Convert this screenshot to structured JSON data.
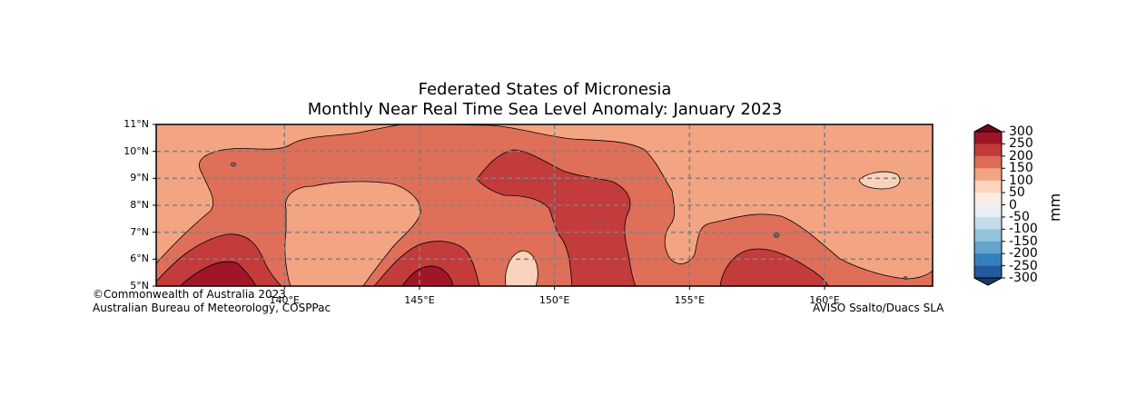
{
  "title": {
    "line1": "Federated States of Micronesia",
    "line2": "Monthly Near Real Time Sea Level Anomaly: January 2023"
  },
  "axes": {
    "lat_labels": [
      "11°N",
      "10°N",
      "9°N",
      "8°N",
      "7°N",
      "6°N",
      "5°N"
    ],
    "lon_labels": [
      "140°E",
      "145°E",
      "150°E",
      "155°E",
      "160°E"
    ]
  },
  "credits": {
    "left_line1": "©Commonwealth of Australia 2023",
    "left_line2": "Australian Bureau of Meteorology, COSPPac",
    "right": "AVISO Ssalto/Duacs SLA"
  },
  "colorbar": {
    "unit": "mm",
    "labels": [
      "300",
      "250",
      "200",
      "150",
      "100",
      "50",
      "0",
      "-50",
      "-100",
      "-150",
      "-200",
      "-250",
      "-300"
    ],
    "colors": [
      "#9e1527",
      "#c23a3a",
      "#dd6d58",
      "#f2a483",
      "#fcd4bd",
      "#fbece4",
      "#e8f0f5",
      "#c4dded",
      "#93c4de",
      "#62a4cc",
      "#3680bc",
      "#23599e"
    ],
    "over_color": "#6a0a1c",
    "under_color": "#133a6d"
  },
  "chart_data": {
    "type": "heatmap",
    "title": "Monthly Near Real Time Sea Level Anomaly: January 2023",
    "region": "Federated States of Micronesia",
    "x_range": [
      135.25,
      164
    ],
    "y_range": [
      5,
      11
    ],
    "x_ticks": [
      140,
      145,
      150,
      155,
      160
    ],
    "y_ticks": [
      5,
      6,
      7,
      8,
      9,
      10,
      11
    ],
    "grid": "dashed",
    "colorbar_unit": "mm",
    "levels": [
      -300,
      -250,
      -200,
      -150,
      -100,
      -50,
      0,
      50,
      100,
      150,
      200,
      250,
      300
    ],
    "background_level_mm": [
      100,
      150
    ],
    "regions": [
      {
        "level_mm": [
          150,
          200
        ],
        "description": "broad band across most of domain"
      },
      {
        "level_mm": [
          200,
          250
        ],
        "description": "tongue from ~148°E to ~153°E between 5°N and 9.5°N"
      },
      {
        "level_mm": [
          250,
          300
        ],
        "description": "cores near 137.5°E and 145.5°E at 5°N"
      },
      {
        "level_mm": [
          100,
          150
        ],
        "description": "pocket near 140–145°E, 6–8°N"
      },
      {
        "level_mm": [
          50,
          100
        ],
        "description": "small pockets near 148.5°E 5.5°N and 161.5°E 9°N"
      }
    ]
  }
}
